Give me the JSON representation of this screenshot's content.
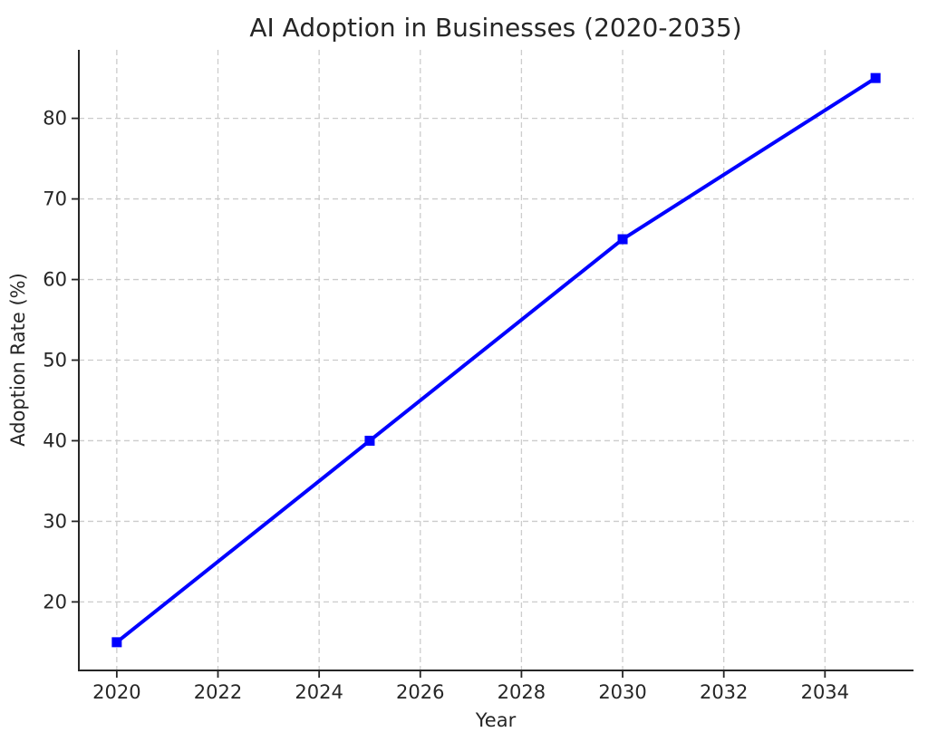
{
  "chart_data": {
    "type": "line",
    "title": "AI Adoption in Businesses (2020-2035)",
    "xlabel": "Year",
    "ylabel": "Adoption Rate (%)",
    "x": [
      2020,
      2025,
      2030,
      2035
    ],
    "series": [
      {
        "name": "Adoption Rate",
        "values": [
          15,
          40,
          65,
          85
        ]
      }
    ],
    "xticks": [
      2020,
      2022,
      2024,
      2026,
      2028,
      2030,
      2032,
      2034
    ],
    "yticks": [
      20,
      30,
      40,
      50,
      60,
      70,
      80
    ],
    "xlim": [
      2019.25,
      2035.75
    ],
    "ylim": [
      11.5,
      88.5
    ],
    "grid": true,
    "grid_style": "dashed",
    "legend_position": "none",
    "marker": "square",
    "style": {
      "line_color": "#0000ff",
      "marker_color": "#0000ff",
      "grid_color": "#cccccc",
      "spine_color": "#262626",
      "text_color": "#262626",
      "background": "#ffffff"
    }
  }
}
